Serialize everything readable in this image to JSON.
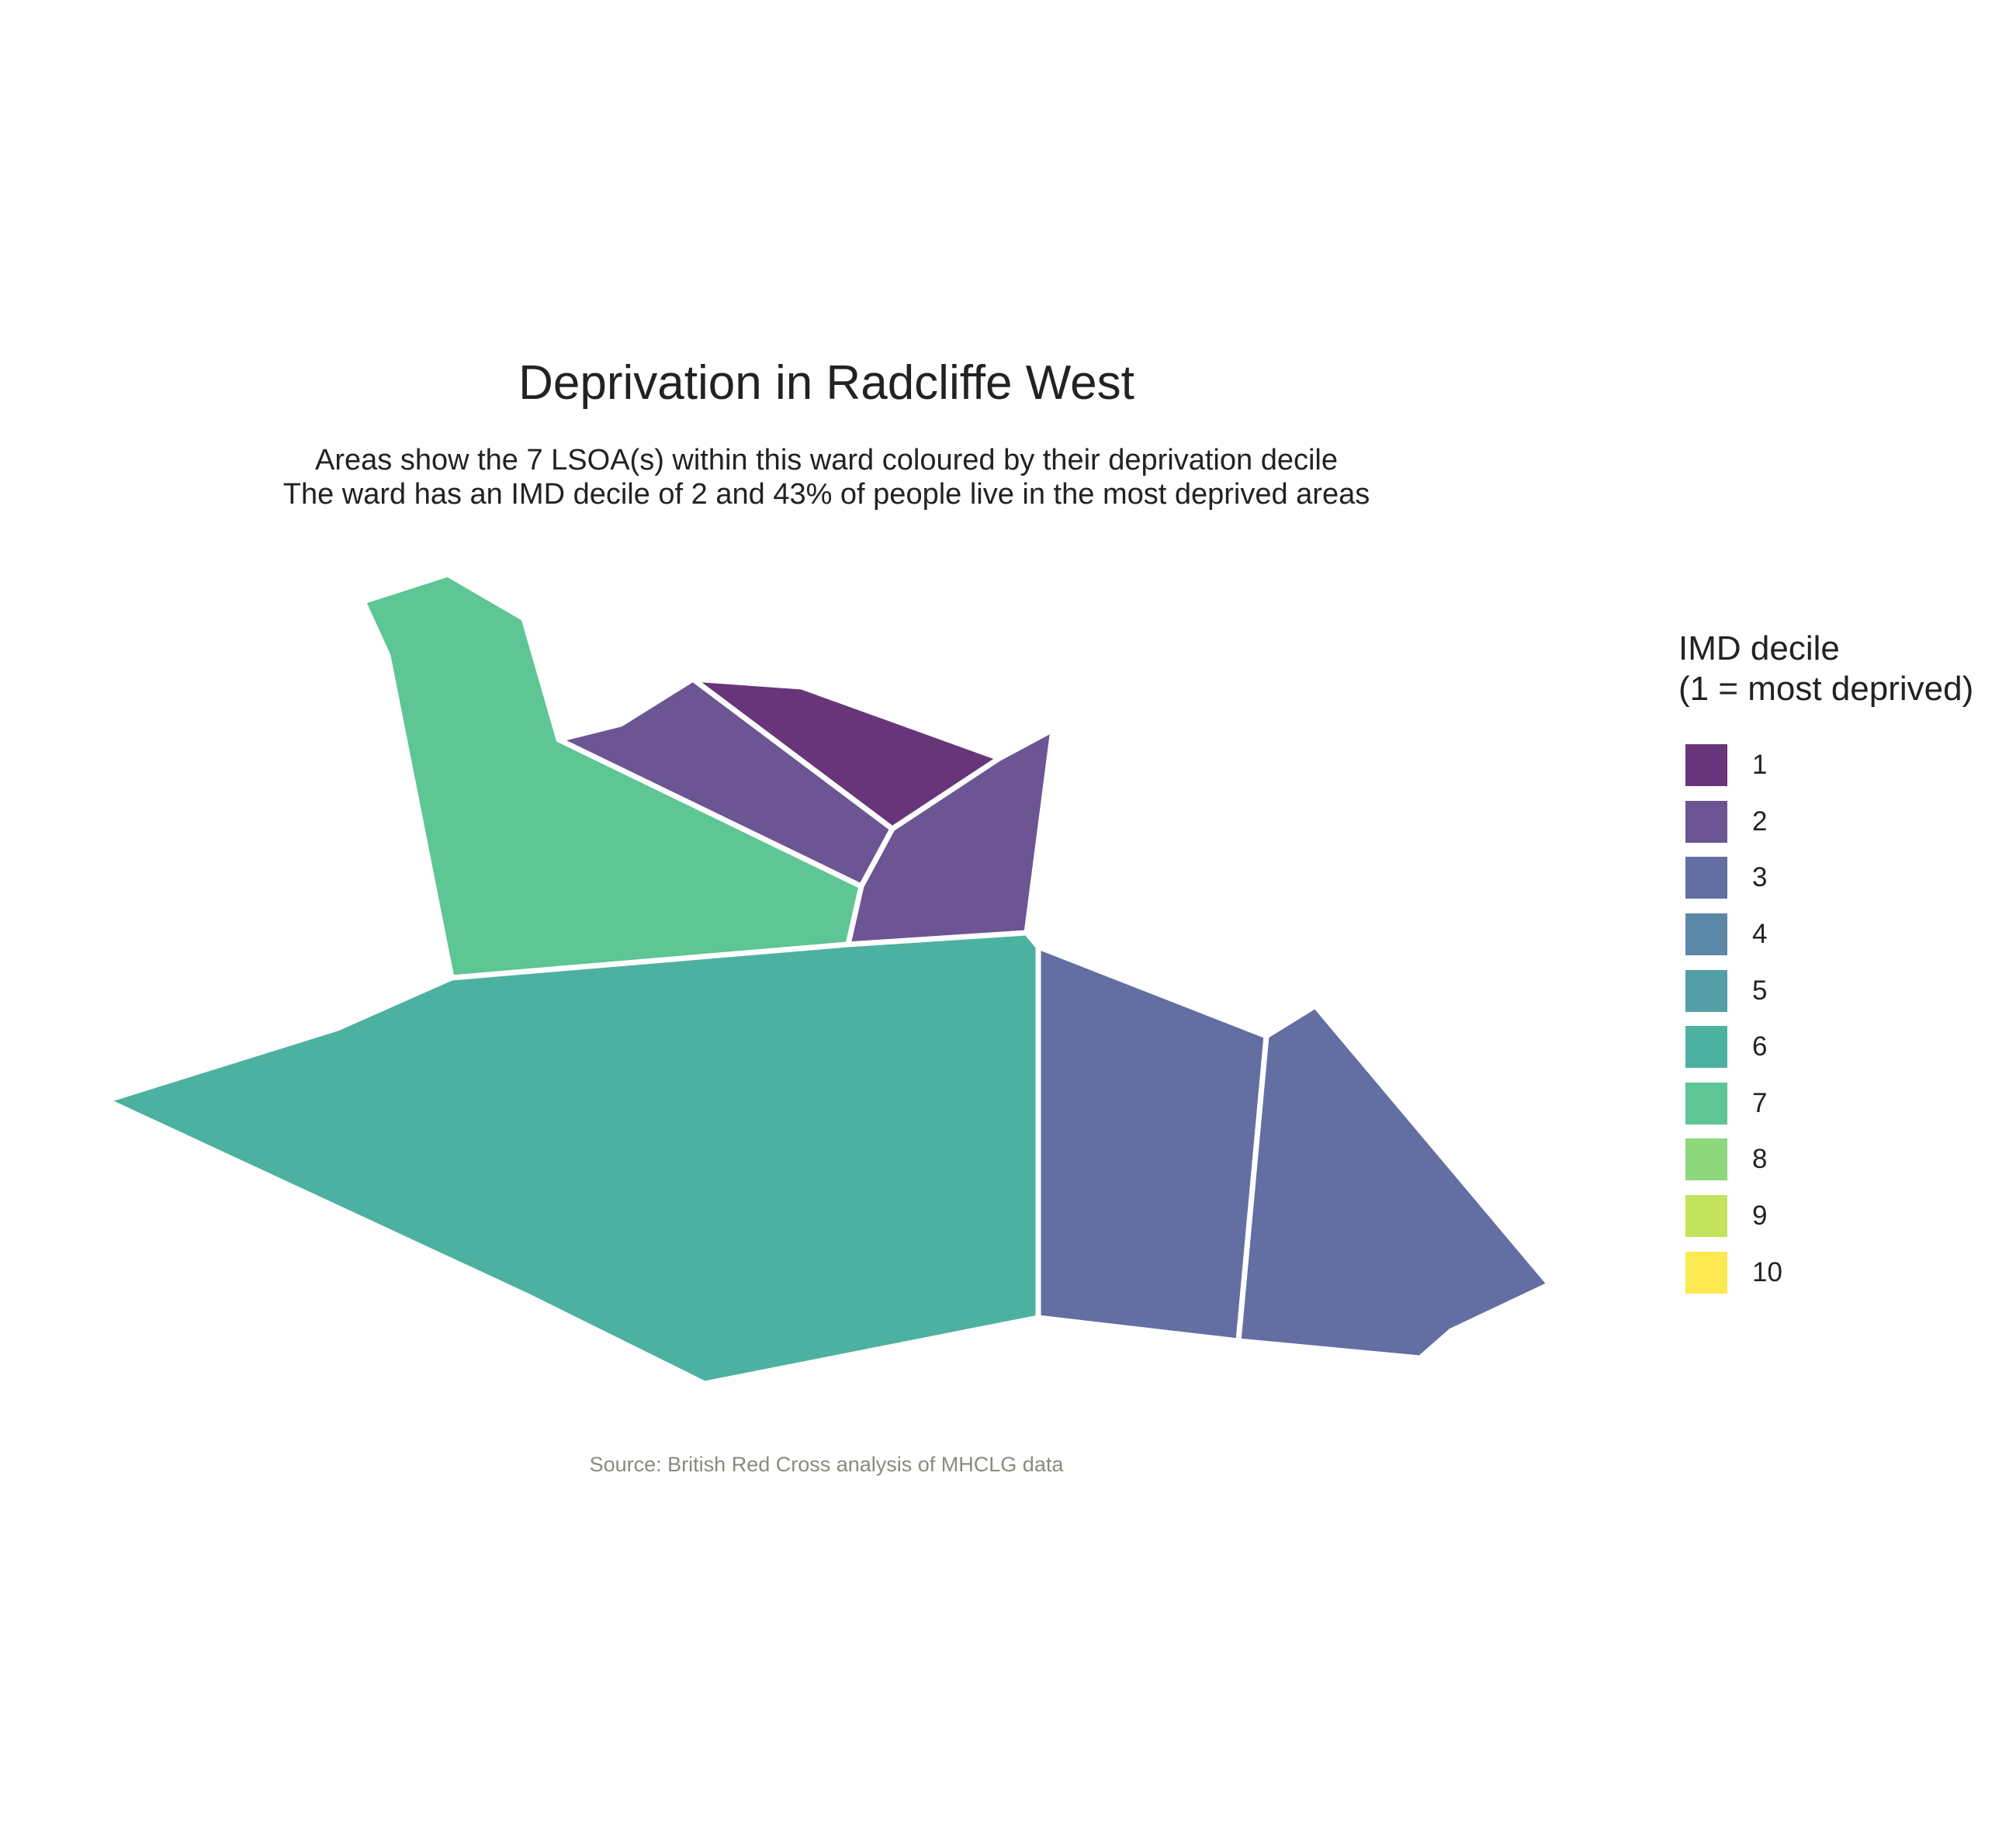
{
  "title": "Deprivation in Radcliffe West",
  "subtitle_line1": "Areas show the 7 LSOA(s) within this ward coloured by their deprivation decile",
  "subtitle_line2": "The ward has an IMD decile of 2 and 43% of people live in the most deprived areas",
  "source": "Source: British Red Cross analysis of MHCLG data",
  "legend": {
    "title_line1": "IMD decile",
    "title_line2": "(1 = most deprived)",
    "items": [
      {
        "label": "1",
        "color": "#68357a"
      },
      {
        "label": "2",
        "color": "#6d5594"
      },
      {
        "label": "3",
        "color": "#636fa2"
      },
      {
        "label": "4",
        "color": "#5a88a6"
      },
      {
        "label": "5",
        "color": "#549ea7"
      },
      {
        "label": "6",
        "color": "#4db1a1"
      },
      {
        "label": "7",
        "color": "#5ec594"
      },
      {
        "label": "8",
        "color": "#8dd77c"
      },
      {
        "label": "9",
        "color": "#c4e35c"
      },
      {
        "label": "10",
        "color": "#fce952"
      }
    ]
  },
  "areas": [
    {
      "name": "lsoa-decile-7-north-west",
      "decile": 7
    },
    {
      "name": "lsoa-decile-2-north-centre",
      "decile": 2
    },
    {
      "name": "lsoa-decile-1-north",
      "decile": 1
    },
    {
      "name": "lsoa-decile-2-north-east",
      "decile": 2
    },
    {
      "name": "lsoa-decile-6-south-west",
      "decile": 6
    },
    {
      "name": "lsoa-decile-3-east",
      "decile": 3
    },
    {
      "name": "lsoa-decile-3-far-east",
      "decile": 3
    }
  ]
}
